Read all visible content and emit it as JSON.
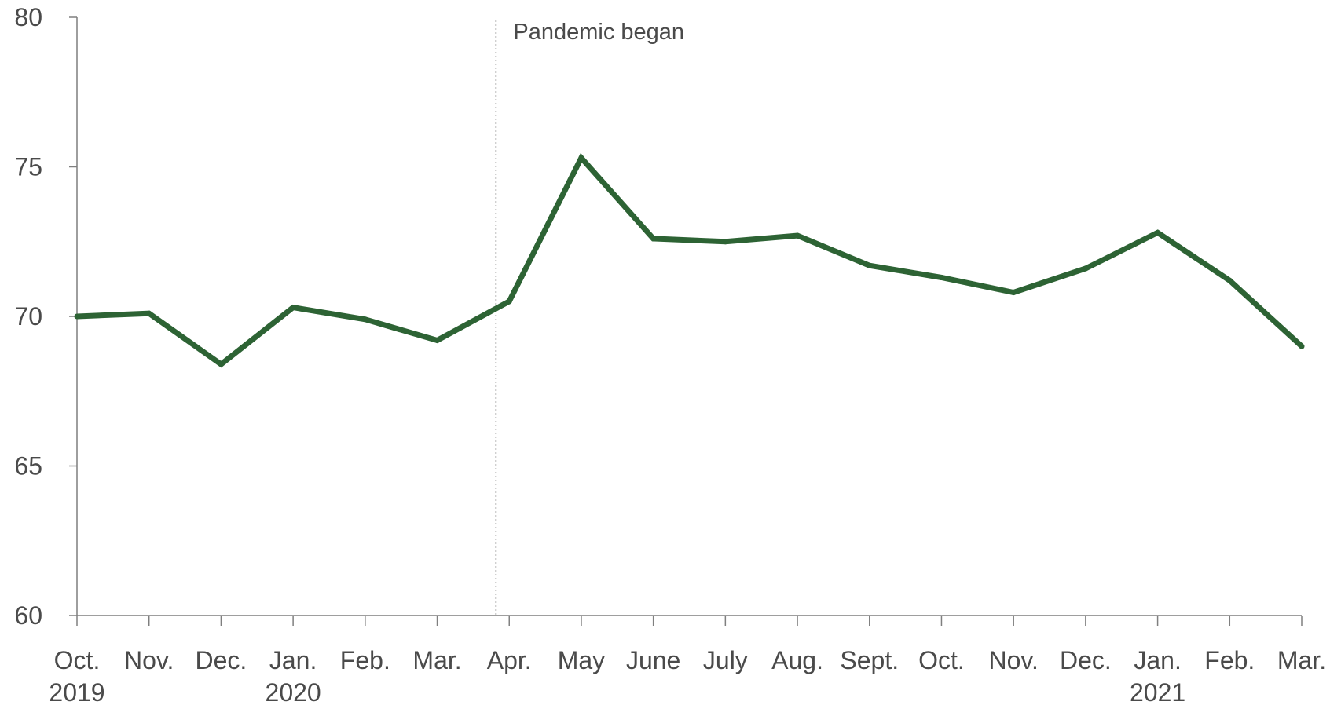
{
  "chart_data": {
    "type": "line",
    "title": "",
    "xlabel": "",
    "ylabel": "",
    "categories": [
      "Oct.",
      "Nov.",
      "Dec.",
      "Jan.",
      "Feb.",
      "Mar.",
      "Apr.",
      "May",
      "June",
      "July",
      "Aug.",
      "Sept.",
      "Oct.",
      "Nov.",
      "Dec.",
      "Jan.",
      "Feb.",
      "Mar."
    ],
    "year_labels": [
      {
        "index": 0,
        "label": "2019"
      },
      {
        "index": 3,
        "label": "2020"
      },
      {
        "index": 15,
        "label": "2021"
      }
    ],
    "series": [
      {
        "values": [
          70.0,
          70.1,
          68.4,
          70.3,
          69.9,
          69.2,
          70.5,
          75.3,
          72.6,
          72.5,
          72.7,
          71.7,
          71.3,
          70.8,
          71.6,
          72.8,
          71.2,
          69.0
        ],
        "color": "#2d6334"
      }
    ],
    "ylim": [
      60,
      80
    ],
    "yticks": [
      60,
      65,
      70,
      75,
      80
    ],
    "grid": false,
    "legend": "none",
    "annotation": {
      "label": "Pandemic began",
      "between_index": [
        5,
        6
      ],
      "style": "dotted vertical line"
    }
  }
}
